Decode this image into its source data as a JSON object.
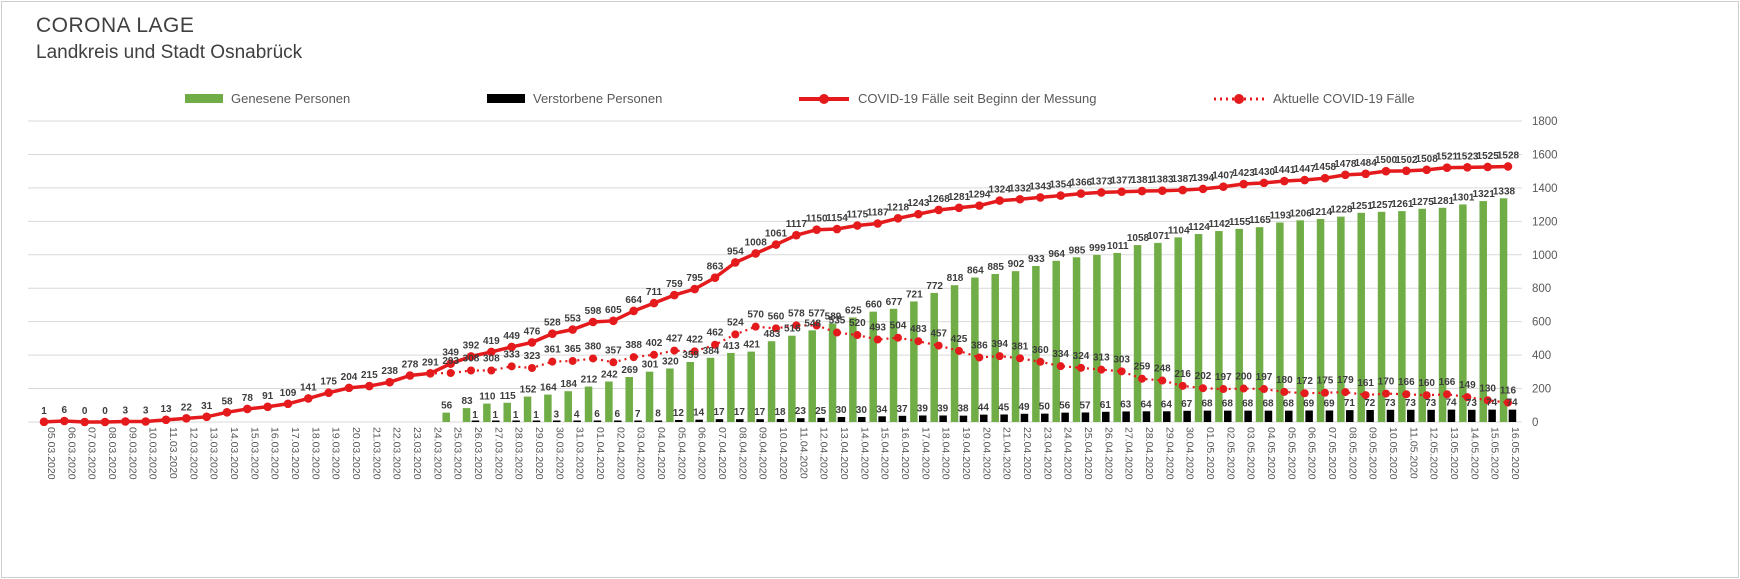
{
  "header": {
    "title": "CORONA LAGE",
    "subtitle": "Landkreis und Stadt Osnabrück"
  },
  "colors": {
    "recovered_green": "#70ad47",
    "deceased_black": "#000000",
    "cases_red": "#e41a1c",
    "grid_gray": "#d9d9d9",
    "text_gray": "#595959",
    "label_dark": "#3d3d3d"
  },
  "legend": {
    "items": [
      {
        "label": "Genesene Personen",
        "swatch": "bar",
        "color": "#70ad47"
      },
      {
        "label": "Verstorbene Personen",
        "swatch": "bar",
        "color": "#000000"
      },
      {
        "label": "COVID-19 Fälle seit Beginn der Messung",
        "swatch": "solid-line",
        "color": "#e41a1c"
      },
      {
        "label": "Aktuelle COVID-19 Fälle",
        "swatch": "dotted-line",
        "color": "#e41a1c"
      }
    ]
  },
  "chart_data": {
    "type": "combo",
    "title": "CORONA LAGE — Landkreis und Stadt Osnabrück",
    "xlabel": "",
    "ylabel": "",
    "ylim": [
      0,
      1800
    ],
    "y_ticks": [
      0,
      200,
      400,
      600,
      800,
      1000,
      1200,
      1400,
      1600,
      1800
    ],
    "grid": true,
    "legend_position": "top",
    "categories": [
      "05.03.2020",
      "06.03.2020",
      "07.03.2020",
      "08.03.2020",
      "09.03.2020",
      "10.03.2020",
      "11.03.2020",
      "12.03.2020",
      "13.03.2020",
      "14.03.2020",
      "15.03.2020",
      "16.03.2020",
      "17.03.2020",
      "18.03.2020",
      "19.03.2020",
      "20.03.2020",
      "21.03.2020",
      "22.03.2020",
      "23.03.2020",
      "24.03.2020",
      "25.03.2020",
      "26.03.2020",
      "27.03.2020",
      "28.03.2020",
      "29.03.2020",
      "30.03.2020",
      "31.03.2020",
      "01.04.2020",
      "02.04.2020",
      "03.04.2020",
      "04.04.2020",
      "05.04.2020",
      "06.04.2020",
      "07.04.2020",
      "08.04.2020",
      "09.04.2020",
      "10.04.2020",
      "11.04.2020",
      "12.04.2020",
      "13.04.2020",
      "14.04.2020",
      "15.04.2020",
      "16.04.2020",
      "17.04.2020",
      "18.04.2020",
      "19.04.2020",
      "20.04.2020",
      "21.04.2020",
      "22.04.2020",
      "23.04.2020",
      "24.04.2020",
      "25.04.2020",
      "26.04.2020",
      "27.04.2020",
      "28.04.2020",
      "29.04.2020",
      "30.04.2020",
      "01.05.2020",
      "02.05.2020",
      "03.05.2020",
      "04.05.2020",
      "05.05.2020",
      "06.05.2020",
      "07.05.2020",
      "08.05.2020",
      "09.05.2020",
      "10.05.2020",
      "11.05.2020",
      "12.05.2020",
      "13.05.2020",
      "14.05.2020",
      "15.05.2020",
      "16.05.2020"
    ],
    "series": [
      {
        "name": "Genesene Personen",
        "type": "bar",
        "style": "solid",
        "color": "#70ad47",
        "values": [
          0,
          0,
          0,
          0,
          0,
          0,
          0,
          0,
          0,
          0,
          0,
          0,
          0,
          0,
          0,
          0,
          0,
          0,
          0,
          0,
          56,
          83,
          110,
          115,
          152,
          164,
          184,
          212,
          242,
          269,
          301,
          320,
          359,
          384,
          413,
          421,
          483,
          516,
          548,
          589,
          625,
          660,
          677,
          721,
          772,
          818,
          864,
          885,
          902,
          933,
          964,
          985,
          999,
          1011,
          1058,
          1071,
          1104,
          1124,
          1142,
          1155,
          1165,
          1193,
          1206,
          1214,
          1228,
          1251,
          1257,
          1261,
          1275,
          1281,
          1301,
          1321,
          1338
        ]
      },
      {
        "name": "Verstorbene Personen",
        "type": "bar",
        "style": "solid",
        "color": "#000000",
        "values": [
          0,
          0,
          0,
          0,
          0,
          0,
          0,
          0,
          0,
          0,
          0,
          0,
          0,
          0,
          0,
          0,
          0,
          0,
          0,
          0,
          0,
          1,
          1,
          1,
          1,
          3,
          4,
          6,
          6,
          7,
          8,
          12,
          14,
          17,
          17,
          17,
          18,
          23,
          25,
          30,
          30,
          34,
          37,
          39,
          39,
          38,
          44,
          45,
          49,
          50,
          56,
          57,
          61,
          63,
          64,
          64,
          67,
          68,
          68,
          68,
          68,
          68,
          69,
          69,
          71,
          72,
          73,
          73,
          73,
          74,
          73,
          74,
          74
        ]
      },
      {
        "name": "COVID-19 Fälle seit Beginn der Messung",
        "type": "line",
        "style": "solid",
        "color": "#e41a1c",
        "values": [
          1,
          6,
          0,
          0,
          3,
          3,
          13,
          22,
          31,
          58,
          78,
          91,
          109,
          141,
          175,
          204,
          215,
          238,
          278,
          291,
          349,
          392,
          419,
          449,
          476,
          528,
          553,
          598,
          605,
          664,
          711,
          759,
          795,
          863,
          954,
          1008,
          1061,
          1117,
          1150,
          1154,
          1175,
          1187,
          1218,
          1243,
          1268,
          1281,
          1294,
          1324,
          1332,
          1343,
          1354,
          1366,
          1373,
          1377,
          1381,
          1383,
          1387,
          1394,
          1407,
          1423,
          1430,
          1441,
          1447,
          1458,
          1478,
          1484,
          1500,
          1502,
          1508,
          1521,
          1523,
          1525,
          1528
        ]
      },
      {
        "name": "Aktuelle COVID-19 Fälle",
        "type": "line",
        "style": "dotted",
        "color": "#e41a1c",
        "labels_from_index": 20,
        "values": [
          1,
          6,
          0,
          0,
          3,
          3,
          13,
          22,
          31,
          58,
          78,
          91,
          109,
          141,
          175,
          204,
          215,
          238,
          278,
          291,
          293,
          308,
          308,
          333,
          323,
          361,
          365,
          380,
          357,
          388,
          402,
          427,
          422,
          462,
          524,
          570,
          560,
          578,
          577,
          535,
          520,
          493,
          504,
          483,
          457,
          425,
          386,
          394,
          381,
          360,
          334,
          324,
          313,
          303,
          259,
          248,
          216,
          202,
          197,
          200,
          197,
          180,
          172,
          175,
          179,
          161,
          170,
          166,
          160,
          166,
          149,
          130,
          116
        ]
      }
    ]
  }
}
